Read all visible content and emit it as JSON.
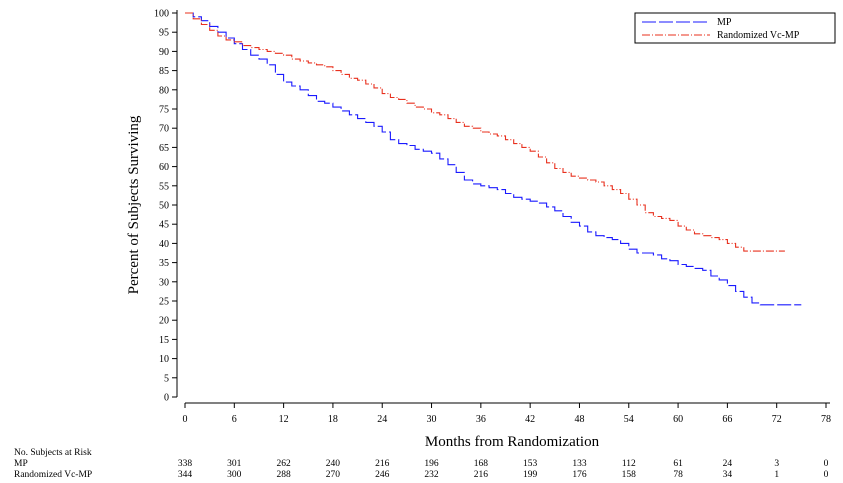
{
  "chart_data": {
    "type": "line",
    "title": "",
    "xlabel": "Months from Randomization",
    "ylabel": "Percent of Subjects Surviving",
    "xlim": [
      0,
      78
    ],
    "ylim": [
      0,
      100
    ],
    "x_ticks": [
      "0",
      "6",
      "12",
      "18",
      "24",
      "30",
      "36",
      "42",
      "48",
      "54",
      "60",
      "66",
      "72",
      "78"
    ],
    "y_ticks": [
      "0",
      "5",
      "10",
      "15",
      "20",
      "25",
      "30",
      "35",
      "40",
      "45",
      "50",
      "55",
      "60",
      "65",
      "70",
      "75",
      "80",
      "85",
      "90",
      "95",
      "100"
    ],
    "legend_position": "top-right",
    "series": [
      {
        "name": "MP",
        "color": "#1a1aff",
        "style": "dashed",
        "x": [
          0,
          1,
          2,
          3,
          4,
          5,
          6,
          7,
          8,
          9,
          10,
          11,
          12,
          13,
          14,
          15,
          16,
          17,
          18,
          19,
          20,
          21,
          22,
          23,
          24,
          25,
          26,
          27,
          28,
          29,
          30,
          31,
          32,
          33,
          34,
          35,
          36,
          37,
          38,
          39,
          40,
          41,
          42,
          43,
          44,
          45,
          46,
          47,
          48,
          49,
          50,
          51,
          52,
          53,
          54,
          55,
          56,
          57,
          58,
          59,
          60,
          61,
          62,
          63,
          64,
          65,
          66,
          67,
          68,
          69,
          70,
          71,
          72,
          73,
          74,
          75
        ],
        "y": [
          100,
          99,
          98,
          96.5,
          95,
          93.5,
          92,
          90.5,
          89,
          88,
          86.5,
          84,
          82,
          81,
          80,
          78.5,
          77,
          76.5,
          75.5,
          74.5,
          73.5,
          72.5,
          71.5,
          70.5,
          69,
          67,
          66,
          65.5,
          64.5,
          64,
          63.5,
          62,
          60.5,
          58.5,
          56.5,
          55.5,
          55,
          54.5,
          54,
          53,
          52,
          51.5,
          51,
          50.5,
          49.5,
          48.5,
          47,
          45.5,
          44.5,
          43,
          42,
          41.5,
          41,
          40,
          38.5,
          37.5,
          37.5,
          37,
          36,
          35.5,
          34.5,
          34,
          33.5,
          33,
          31.5,
          30.5,
          29,
          27.5,
          26,
          24.5,
          24,
          24,
          24,
          24,
          24,
          24
        ]
      },
      {
        "name": "Randomized Vc-MP",
        "color": "#e8301e",
        "style": "dash-dot",
        "x": [
          0,
          1,
          2,
          3,
          4,
          5,
          6,
          7,
          8,
          9,
          10,
          11,
          12,
          13,
          14,
          15,
          16,
          17,
          18,
          19,
          20,
          21,
          22,
          23,
          24,
          25,
          26,
          27,
          28,
          29,
          30,
          31,
          32,
          33,
          34,
          35,
          36,
          37,
          38,
          39,
          40,
          41,
          42,
          43,
          44,
          45,
          46,
          47,
          48,
          49,
          50,
          51,
          52,
          53,
          54,
          55,
          56,
          57,
          58,
          59,
          60,
          61,
          62,
          63,
          64,
          65,
          66,
          67,
          68,
          69,
          70,
          71,
          72,
          73
        ],
        "y": [
          100,
          98.5,
          97,
          95.5,
          94,
          93,
          92.5,
          91.5,
          91,
          90.5,
          90,
          89.5,
          89,
          88,
          87.5,
          87,
          86.5,
          86,
          85,
          84,
          83,
          82.5,
          81.5,
          80.5,
          79,
          78,
          77.5,
          76.5,
          75.5,
          75,
          74,
          73.5,
          72.5,
          71.5,
          70.5,
          70,
          69,
          68.5,
          68,
          67,
          66,
          65,
          64,
          62.5,
          61,
          59.5,
          58.5,
          57.5,
          57,
          56.5,
          56,
          55,
          54,
          53,
          51.5,
          50,
          48,
          47,
          46.5,
          46,
          44.5,
          43.5,
          42.5,
          42,
          41.5,
          41,
          40,
          39,
          38,
          38,
          38,
          38,
          38,
          38
        ]
      }
    ]
  },
  "risk_table": {
    "header": "No. Subjects at Risk",
    "rows": [
      {
        "label": "MP",
        "values": [
          "338",
          "301",
          "262",
          "240",
          "216",
          "196",
          "168",
          "153",
          "133",
          "112",
          "61",
          "24",
          "3",
          "0"
        ]
      },
      {
        "label": "Randomized Vc-MP",
        "values": [
          "344",
          "300",
          "288",
          "270",
          "246",
          "232",
          "216",
          "199",
          "176",
          "158",
          "78",
          "34",
          "1",
          "0"
        ]
      }
    ]
  }
}
